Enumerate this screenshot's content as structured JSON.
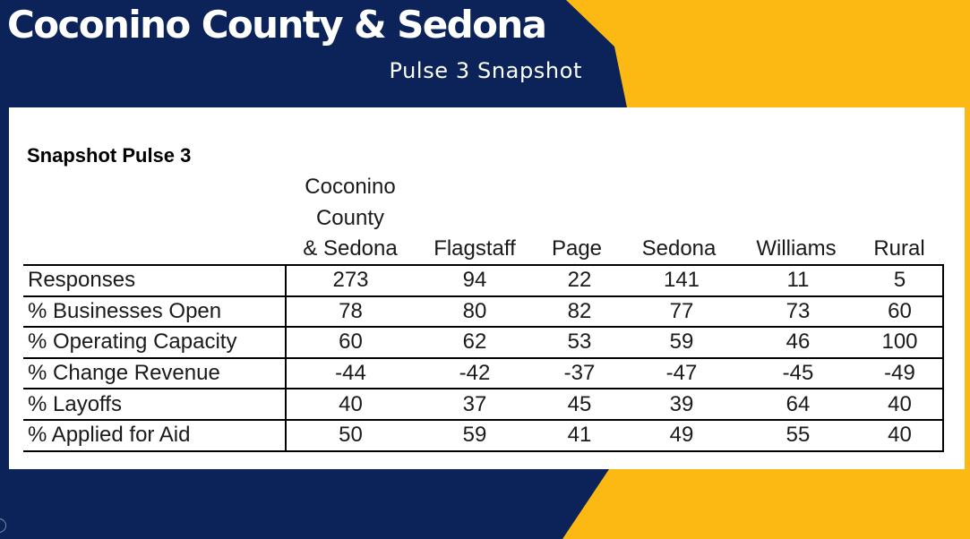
{
  "header": {
    "title": "Coconino County & Sedona",
    "subtitle": "Pulse 3 Snapshot"
  },
  "colors": {
    "navy": "#0b2358",
    "gold": "#fdb913",
    "card": "#ffffff"
  },
  "table": {
    "heading": "Snapshot Pulse 3",
    "columns": [
      [
        "Coconino",
        "County",
        "& Sedona"
      ],
      [
        "Flagstaff"
      ],
      [
        "Page"
      ],
      [
        "Sedona"
      ],
      [
        "Williams"
      ],
      [
        "Rural"
      ]
    ],
    "rows": [
      {
        "label": "Responses",
        "values": [
          "273",
          "94",
          "22",
          "141",
          "11",
          "5"
        ]
      },
      {
        "label": "% Businesses Open",
        "values": [
          "78",
          "80",
          "82",
          "77",
          "73",
          "60"
        ]
      },
      {
        "label": "% Operating Capacity",
        "values": [
          "60",
          "62",
          "53",
          "59",
          "46",
          "100"
        ]
      },
      {
        "label": "% Change Revenue",
        "values": [
          "-44",
          "-42",
          "-37",
          "-47",
          "-45",
          "-49"
        ]
      },
      {
        "label": "% Layoffs",
        "values": [
          "40",
          "37",
          "45",
          "39",
          "64",
          "40"
        ]
      },
      {
        "label": "% Applied for Aid",
        "values": [
          "50",
          "59",
          "41",
          "49",
          "55",
          "40"
        ]
      }
    ]
  }
}
